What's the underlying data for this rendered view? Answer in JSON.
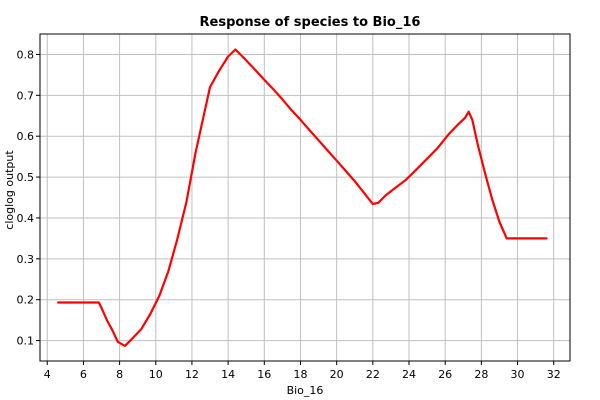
{
  "chart_data": {
    "type": "line",
    "title": "Response of species to Bio_16",
    "xlabel": "Bio_16",
    "ylabel": "cloglog output",
    "xlim": [
      3.6,
      32.9
    ],
    "ylim": [
      0.05,
      0.85
    ],
    "xticks": [
      4,
      6,
      8,
      10,
      12,
      14,
      16,
      18,
      20,
      22,
      24,
      26,
      28,
      30,
      32
    ],
    "yticks": [
      0.1,
      0.2,
      0.3,
      0.4,
      0.5,
      0.6,
      0.7,
      0.8
    ],
    "grid": true,
    "series": [
      {
        "color": "#ff0000",
        "points": [
          [
            4.6,
            0.193
          ],
          [
            5.5,
            0.193
          ],
          [
            6.5,
            0.193
          ],
          [
            6.85,
            0.193
          ],
          [
            7.0,
            0.18
          ],
          [
            7.3,
            0.15
          ],
          [
            7.6,
            0.125
          ],
          [
            7.9,
            0.097
          ],
          [
            8.3,
            0.087
          ],
          [
            8.7,
            0.105
          ],
          [
            9.2,
            0.128
          ],
          [
            9.7,
            0.165
          ],
          [
            10.2,
            0.21
          ],
          [
            10.7,
            0.27
          ],
          [
            11.2,
            0.35
          ],
          [
            11.7,
            0.44
          ],
          [
            12.2,
            0.56
          ],
          [
            12.6,
            0.64
          ],
          [
            13.0,
            0.72
          ],
          [
            13.5,
            0.76
          ],
          [
            14.0,
            0.795
          ],
          [
            14.4,
            0.812
          ],
          [
            14.9,
            0.79
          ],
          [
            15.5,
            0.762
          ],
          [
            16.0,
            0.738
          ],
          [
            16.5,
            0.715
          ],
          [
            17.0,
            0.69
          ],
          [
            17.5,
            0.664
          ],
          [
            18.0,
            0.64
          ],
          [
            18.5,
            0.615
          ],
          [
            19.0,
            0.59
          ],
          [
            19.5,
            0.565
          ],
          [
            20.0,
            0.54
          ],
          [
            20.5,
            0.515
          ],
          [
            21.0,
            0.49
          ],
          [
            21.5,
            0.462
          ],
          [
            22.0,
            0.434
          ],
          [
            22.3,
            0.437
          ],
          [
            22.7,
            0.455
          ],
          [
            23.2,
            0.472
          ],
          [
            23.8,
            0.492
          ],
          [
            24.4,
            0.518
          ],
          [
            25.0,
            0.545
          ],
          [
            25.6,
            0.572
          ],
          [
            26.2,
            0.605
          ],
          [
            26.7,
            0.628
          ],
          [
            27.1,
            0.645
          ],
          [
            27.3,
            0.66
          ],
          [
            27.5,
            0.64
          ],
          [
            27.8,
            0.58
          ],
          [
            28.2,
            0.51
          ],
          [
            28.6,
            0.445
          ],
          [
            29.0,
            0.39
          ],
          [
            29.4,
            0.35
          ],
          [
            30.0,
            0.35
          ],
          [
            31.0,
            0.35
          ],
          [
            31.6,
            0.35
          ]
        ]
      }
    ]
  }
}
